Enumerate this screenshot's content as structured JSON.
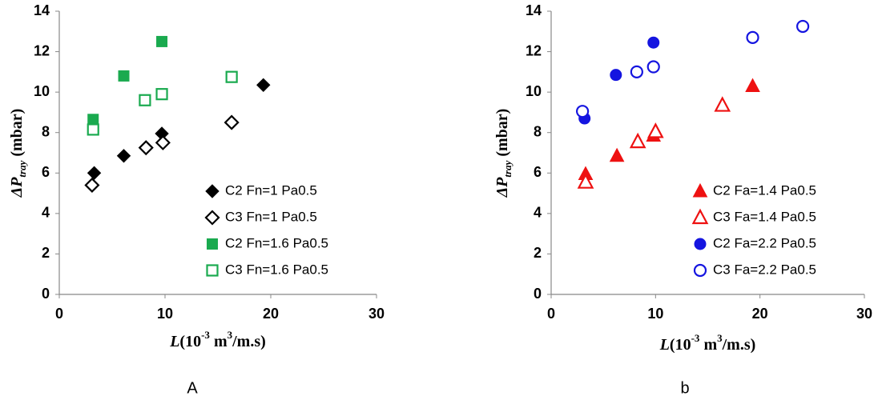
{
  "chart_data": [
    {
      "type": "scatter",
      "panel_label": "A",
      "x_label": [
        {
          "text": "L",
          "italic": true
        },
        {
          "text": "(10"
        },
        {
          "text": "-3",
          "sup": true
        },
        {
          "text": " m"
        },
        {
          "text": "3",
          "sup": true
        },
        {
          "text": "/m.s)"
        }
      ],
      "y_label": [
        {
          "text": "ΔP",
          "italic": true
        },
        {
          "text": "tray",
          "sub": true,
          "italic": true
        },
        {
          "text": " (mbar)"
        }
      ],
      "xlim": [
        0,
        30
      ],
      "xticks": [
        0,
        10,
        20,
        30
      ],
      "ylim": [
        0,
        14
      ],
      "yticks": [
        0,
        2,
        4,
        6,
        8,
        10,
        12,
        14
      ],
      "legend": "lower right",
      "series": [
        {
          "name": "C2 Fn=1 Pa0.5",
          "color": "#000000",
          "marker": "diamond",
          "filled": true,
          "x": [
            3.3,
            6.1,
            9.7,
            19.3
          ],
          "values": [
            6.0,
            6.85,
            7.95,
            10.35
          ]
        },
        {
          "name": "C3 Fn=1 Pa0.5",
          "color": "#000000",
          "marker": "diamond",
          "filled": false,
          "x": [
            3.1,
            8.2,
            9.8,
            16.3
          ],
          "values": [
            5.4,
            7.25,
            7.5,
            8.5
          ]
        },
        {
          "name": "C2 Fn=1.6 Pa0.5",
          "color": "#1aaa4f",
          "marker": "square",
          "filled": true,
          "x": [
            3.2,
            6.1,
            9.7
          ],
          "values": [
            8.65,
            10.8,
            12.5
          ]
        },
        {
          "name": "C3 Fn=1.6 Pa0.5",
          "color": "#1aaa4f",
          "marker": "square",
          "filled": false,
          "x": [
            3.2,
            8.1,
            9.7,
            16.3
          ],
          "values": [
            8.15,
            9.6,
            9.9,
            10.75
          ]
        }
      ]
    },
    {
      "type": "scatter",
      "panel_label": "b",
      "x_label": [
        {
          "text": "L",
          "italic": true
        },
        {
          "text": "(10"
        },
        {
          "text": "-3",
          "sup": true
        },
        {
          "text": " m"
        },
        {
          "text": "3",
          "sup": true
        },
        {
          "text": "/m.s)"
        }
      ],
      "y_label": [
        {
          "text": "ΔP",
          "italic": true
        },
        {
          "text": "tray",
          "sub": true,
          "italic": true
        },
        {
          "text": " (mbar)"
        }
      ],
      "xlim": [
        0,
        30
      ],
      "xticks": [
        0,
        10,
        20,
        30
      ],
      "ylim": [
        0,
        14
      ],
      "yticks": [
        0,
        2,
        4,
        6,
        8,
        10,
        12,
        14
      ],
      "legend": "lower right",
      "series": [
        {
          "name": "C2 Fa=1.4 Pa0.5",
          "color": "#ee1111",
          "marker": "triangle",
          "filled": true,
          "x": [
            3.3,
            6.3,
            9.8,
            19.3
          ],
          "values": [
            5.95,
            6.85,
            7.85,
            10.3
          ]
        },
        {
          "name": "C3 Fa=1.4 Pa0.5",
          "color": "#ee1111",
          "marker": "triangle",
          "filled": false,
          "x": [
            3.3,
            8.3,
            10.0,
            16.4
          ],
          "values": [
            5.55,
            7.55,
            8.05,
            9.35
          ]
        },
        {
          "name": "C2 Fa=2.2 Pa0.5",
          "color": "#1515e0",
          "marker": "circle",
          "filled": true,
          "x": [
            3.2,
            6.2,
            9.8
          ],
          "values": [
            8.7,
            10.85,
            12.45
          ]
        },
        {
          "name": "C3 Fa=2.2 Pa0.5",
          "color": "#1515e0",
          "marker": "circle",
          "filled": false,
          "x": [
            3.0,
            8.2,
            9.8,
            19.3,
            24.1
          ],
          "values": [
            9.05,
            11.0,
            11.25,
            12.7,
            13.25
          ]
        }
      ]
    }
  ]
}
